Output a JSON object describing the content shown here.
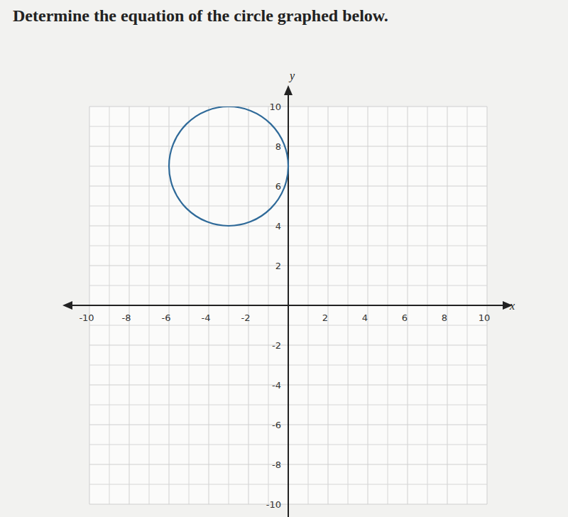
{
  "chart_data": {
    "type": "circle",
    "title": "Determine the equation of the circle graphed below.",
    "x_label": "x",
    "y_label": "y",
    "center": [
      -3,
      7
    ],
    "radius": 3,
    "color": "#2f6a99",
    "xlim": [
      -10,
      10
    ],
    "ylim": [
      -10,
      10
    ],
    "xticks": [
      -10,
      -8,
      -6,
      -4,
      -2,
      2,
      4,
      6,
      8,
      10
    ],
    "yticks": [
      -10,
      -8,
      -6,
      -4,
      -2,
      2,
      4,
      6,
      8,
      10
    ],
    "grid": true
  }
}
